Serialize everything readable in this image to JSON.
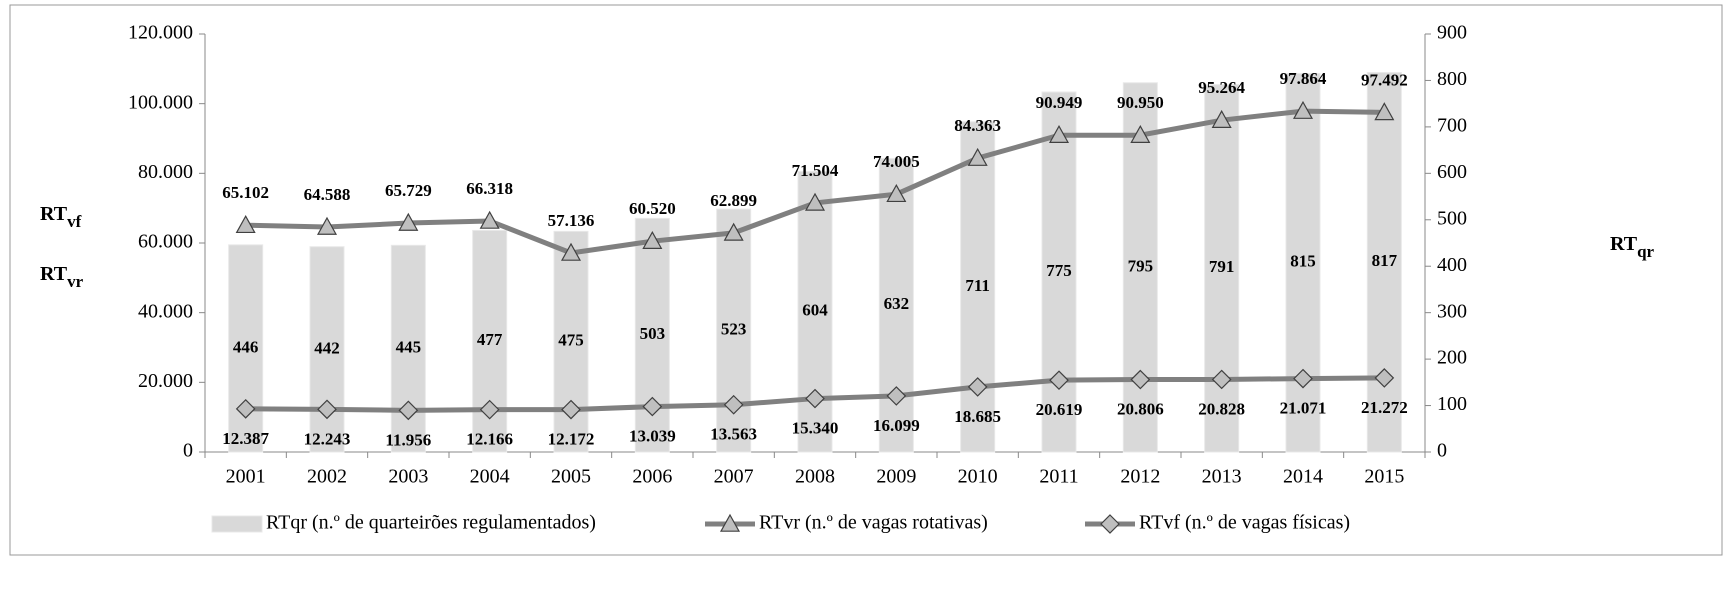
{
  "chart_data": {
    "type": "bar",
    "y_label": [
      {
        "main": "RT",
        "sub": "vf"
      },
      {
        "main": "RT",
        "sub": "vr"
      }
    ],
    "y2_label": {
      "main": "RT",
      "sub": "qr"
    },
    "categories": [
      "2001",
      "2002",
      "2003",
      "2004",
      "2005",
      "2006",
      "2007",
      "2008",
      "2009",
      "2010",
      "2011",
      "2012",
      "2013",
      "2014",
      "2015"
    ],
    "series": [
      {
        "name": "RTqr (n.º de quarteirões regulamentados)",
        "type": "bar",
        "axis": "y2",
        "color": "#d9d9d9",
        "values": [
          446,
          442,
          445,
          477,
          475,
          503,
          523,
          604,
          632,
          711,
          775,
          795,
          791,
          815,
          817
        ]
      },
      {
        "name": "RTvr (n.º de vagas rotativas)",
        "type": "line",
        "marker": "triangle",
        "color": "#808080",
        "values": [
          65102,
          64588,
          65729,
          66318,
          57136,
          60520,
          62899,
          71504,
          74005,
          84363,
          90949,
          90950,
          95264,
          97864,
          97492
        ],
        "value_labels": [
          "65.102",
          "64.588",
          "65.729",
          "66.318",
          "57.136",
          "60.520",
          "62.899",
          "71.504",
          "74.005",
          "84.363",
          "90.949",
          "90.950",
          "95.264",
          "97.864",
          "97.492"
        ]
      },
      {
        "name": "RTvf (n.º de vagas físicas)",
        "type": "line",
        "marker": "diamond",
        "color": "#808080",
        "values": [
          12387,
          12243,
          11956,
          12166,
          12172,
          13039,
          13563,
          15340,
          16099,
          18685,
          20619,
          20806,
          20828,
          21071,
          21272
        ],
        "value_labels": [
          "12.387",
          "12.243",
          "11.956",
          "12.166",
          "12.172",
          "13.039",
          "13.563",
          "15.340",
          "16.099",
          "18.685",
          "20.619",
          "20.806",
          "20.828",
          "21.071",
          "21.272"
        ]
      }
    ],
    "ylim": [
      0,
      120000
    ],
    "yticks": [
      0,
      {
        "value": 20000,
        "label": "20.000"
      },
      {
        "value": 40000,
        "label": "40.000"
      },
      {
        "value": 60000,
        "label": "60.000"
      },
      {
        "value": 80000,
        "label": "80.000"
      },
      {
        "value": 100000,
        "label": "100.000"
      },
      {
        "value": 120000,
        "label": "120.000"
      }
    ],
    "y2lim": [
      0,
      900
    ],
    "y2ticks": [
      0,
      100,
      200,
      300,
      400,
      500,
      600,
      700,
      800,
      900
    ],
    "grid": false
  }
}
